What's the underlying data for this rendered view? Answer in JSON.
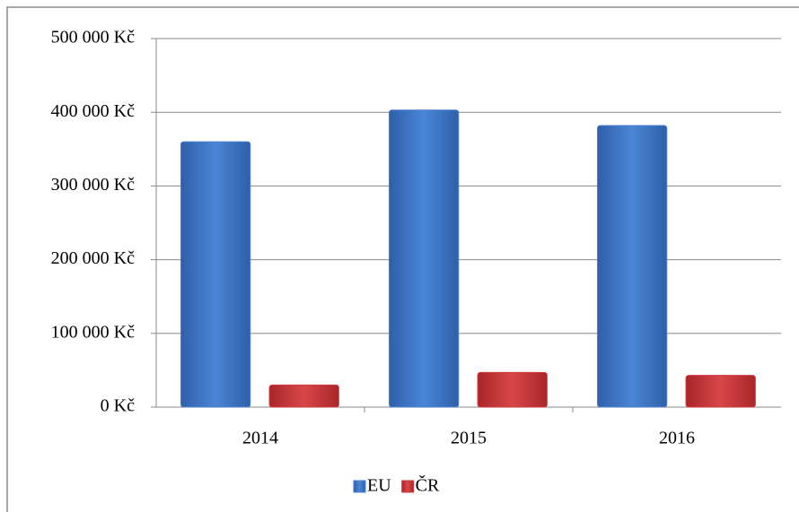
{
  "chart_data": {
    "type": "bar",
    "categories": [
      "2014",
      "2015",
      "2016"
    ],
    "series": [
      {
        "name": "EU",
        "color": "#4a7fd0",
        "values": [
          360000,
          403000,
          382000
        ]
      },
      {
        "name": "ČR",
        "color": "#cc3a3c",
        "values": [
          30000,
          47000,
          43000
        ]
      }
    ],
    "ylim": [
      0,
      500000
    ],
    "yticks": [
      {
        "value": 0,
        "label": "0 Kč"
      },
      {
        "value": 100000,
        "label": "100 000 Kč"
      },
      {
        "value": 200000,
        "label": "200 000 Kč"
      },
      {
        "value": 300000,
        "label": "300 000 Kč"
      },
      {
        "value": 400000,
        "label": "400 000 Kč"
      },
      {
        "value": 500000,
        "label": "500 000 Kč"
      }
    ],
    "grid": true,
    "legend": "bottom"
  }
}
